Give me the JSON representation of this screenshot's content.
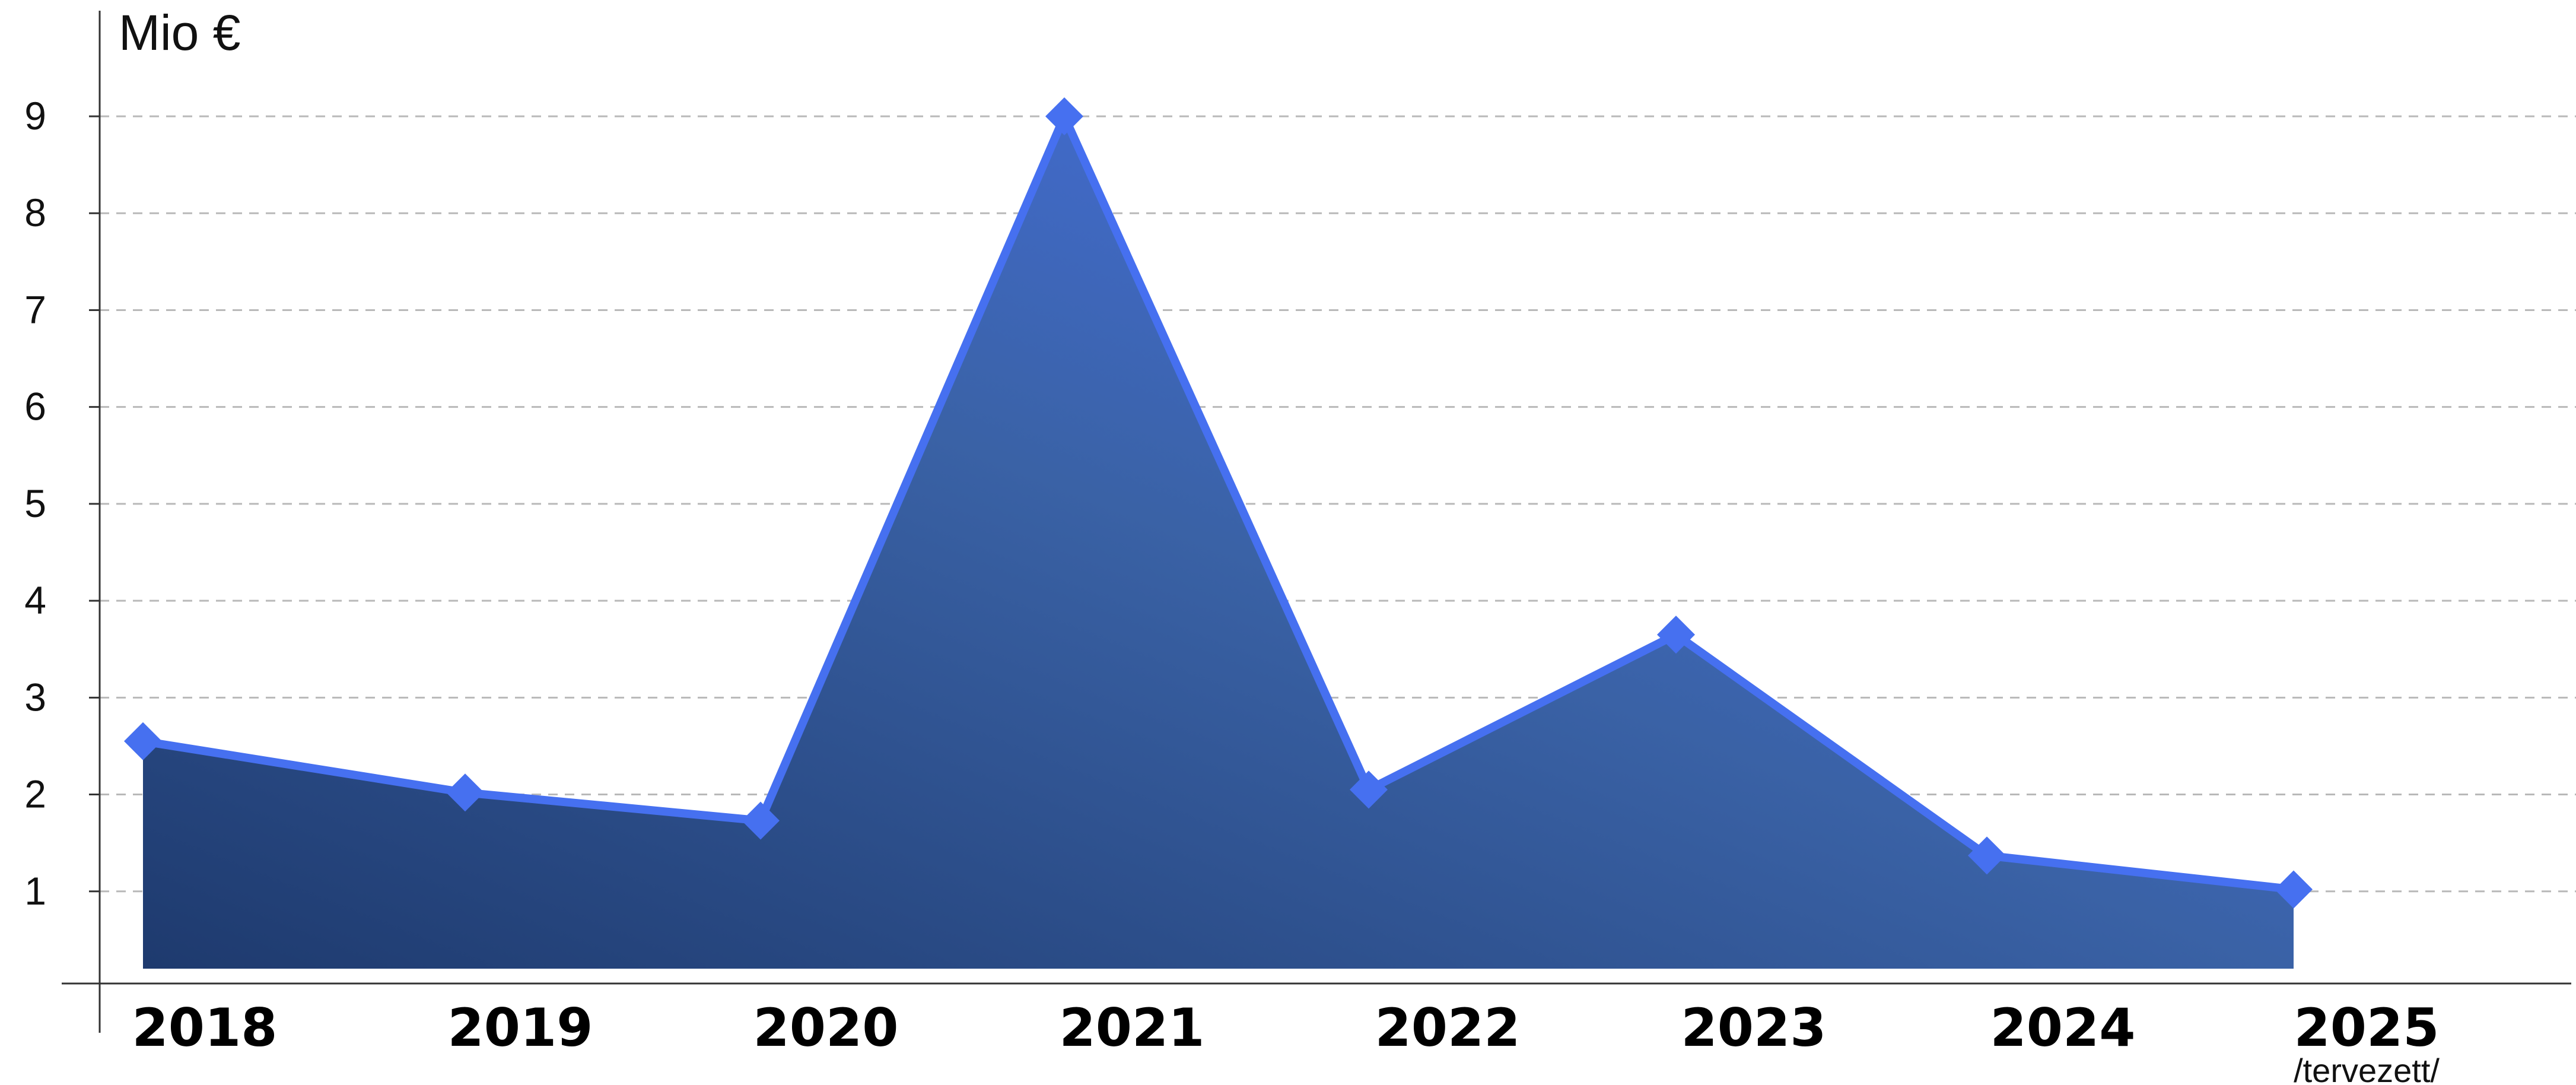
{
  "chart_data": {
    "type": "area",
    "ylabel": "Mio €",
    "x": [
      "2018",
      "2019",
      "2020",
      "2021",
      "2022",
      "2023",
      "2024",
      "2025"
    ],
    "x_notes": [
      "",
      "",
      "",
      "",
      "",
      "",
      "",
      "/tervezett/"
    ],
    "values": [
      2.55,
      2.02,
      1.73,
      9.0,
      2.05,
      3.65,
      1.37,
      1.02
    ],
    "yticks": [
      1,
      2,
      3,
      4,
      5,
      6,
      7,
      8,
      9
    ],
    "ylim": [
      0,
      9
    ],
    "grid": true,
    "legend": "none",
    "colors": {
      "line": "#4670f0",
      "marker": "#4670f0",
      "fill_start": "#1e3a6e",
      "fill_mid": "#3a62a6",
      "fill_end": "#4a74f5"
    }
  }
}
